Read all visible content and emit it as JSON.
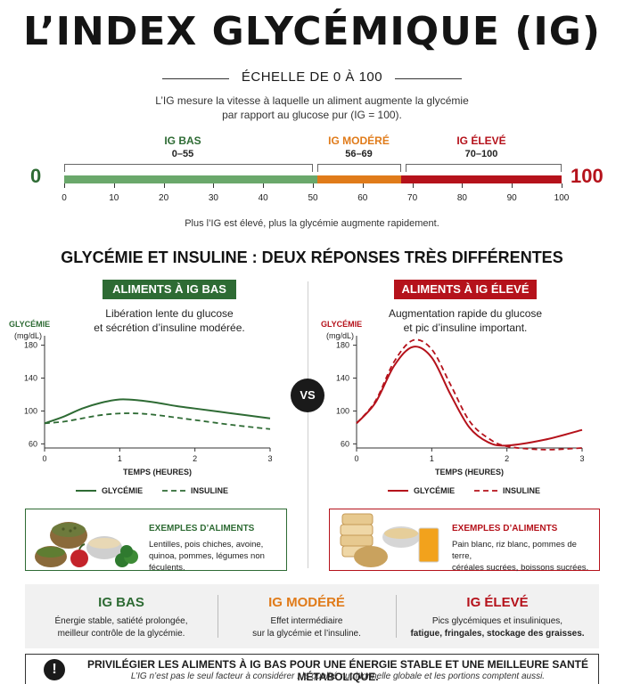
{
  "header": {
    "title": "L’INDEX GLYCÉMIQUE (IG)",
    "subtitle": "ÉCHELLE DE 0 À 100",
    "intro_line1": "L’IG mesure la vitesse à laquelle un aliment augmente la glycémie",
    "intro_line2": "par rapport au glucose pur (IG = 100)."
  },
  "scale": {
    "min_label": "0",
    "max_label": "100",
    "zones": [
      {
        "name": "IG BAS",
        "range": "0–55",
        "color": "#6aa86b",
        "from": 0,
        "to": 55
      },
      {
        "name": "IG MODÉRÉ",
        "range": "56–69",
        "color": "#e07b1a",
        "from": 55,
        "to": 70
      },
      {
        "name": "IG ÉLEVÉ",
        "range": "70–100",
        "color": "#b5121b",
        "from": 70,
        "to": 100
      }
    ],
    "ticks": [
      "0",
      "10",
      "20",
      "30",
      "40",
      "50",
      "60",
      "70",
      "80",
      "90",
      "100"
    ],
    "note": "Plus l’IG est élevé, plus la glycémie augmente rapidement."
  },
  "comparison": {
    "title": "GLYCÉMIE ET INSULINE : DEUX RÉPONSES TRÈS DIFFÉRENTES",
    "vs": "VS",
    "low": {
      "tag": "ALIMENTS À IG BAS",
      "desc_line1": "Libération lente du glucose",
      "desc_line2": "et sécrétion d’insuline modérée.",
      "color": "#2e6b34",
      "examples_title": "EXEMPLES D’ALIMENTS",
      "examples_line1": "Lentilles, pois chiches, avoine,",
      "examples_line2": "quinoa, pommes, légumes non féculents."
    },
    "high": {
      "tag": "ALIMENTS À IG ÉLEVÉ",
      "desc_line1": "Augmentation rapide du glucose",
      "desc_line2": "et pic d’insuline important.",
      "color": "#b5121b",
      "examples_title": "EXEMPLES D’ALIMENTS",
      "examples_line1": "Pain blanc, riz blanc, pommes de terre,",
      "examples_line2": "céréales sucrées, boissons sucrées."
    }
  },
  "chart_data": [
    {
      "type": "line",
      "ylabel": "GLYCÉMIE",
      "yunit": "(mg/dL)",
      "xlabel": "TEMPS (HEURES)",
      "xlim": [
        0,
        3
      ],
      "ylim": [
        55,
        185
      ],
      "xticks": [
        "0",
        "1",
        "2",
        "3"
      ],
      "yticks": [
        "180",
        "140",
        "100",
        "60"
      ],
      "series": [
        {
          "name": "GLYCÉMIE",
          "x": [
            0,
            0.25,
            0.5,
            0.75,
            1.0,
            1.25,
            1.5,
            1.75,
            2.0,
            2.5,
            3.0
          ],
          "values": [
            85,
            93,
            103,
            110,
            114,
            113,
            110,
            106,
            103,
            97,
            91
          ]
        },
        {
          "name": "INSULINE",
          "x": [
            0,
            0.25,
            0.5,
            0.75,
            1.0,
            1.25,
            1.5,
            1.75,
            2.0,
            2.5,
            3.0
          ],
          "values": [
            85,
            87,
            91,
            95,
            97,
            97,
            95,
            92,
            89,
            83,
            78
          ]
        }
      ]
    },
    {
      "type": "line",
      "ylabel": "GLYCÉMIE",
      "yunit": "(mg/dL)",
      "xlabel": "TEMPS (HEURES)",
      "xlim": [
        0,
        3
      ],
      "ylim": [
        55,
        185
      ],
      "xticks": [
        "0",
        "1",
        "2",
        "3"
      ],
      "yticks": [
        "180",
        "140",
        "100",
        "60"
      ],
      "series": [
        {
          "name": "GLYCÉMIE",
          "x": [
            0,
            0.25,
            0.5,
            0.75,
            1.0,
            1.25,
            1.5,
            1.75,
            2.0,
            2.5,
            3.0
          ],
          "values": [
            85,
            110,
            155,
            178,
            165,
            120,
            80,
            62,
            58,
            65,
            77
          ]
        },
        {
          "name": "INSULINE",
          "x": [
            0,
            0.25,
            0.5,
            0.75,
            1.0,
            1.25,
            1.5,
            1.75,
            2.0,
            2.5,
            3.0
          ],
          "values": [
            85,
            112,
            160,
            186,
            175,
            132,
            88,
            67,
            57,
            53,
            55
          ]
        }
      ]
    }
  ],
  "summary": {
    "low": {
      "title": "IG BAS",
      "line1": "Énergie stable, satiété prolongée,",
      "line2": "meilleur contrôle de la glycémie."
    },
    "mid": {
      "title": "IG MODÉRÉ",
      "line1": "Effet intermédiaire",
      "line2": "sur la glycémie et l’insuline."
    },
    "high": {
      "title": "IG ÉLEVÉ",
      "line1": "Pics glycémiques et insuliniques,",
      "line2": "fatigue, fringales, stockage des graisses."
    }
  },
  "footer": {
    "main": "PRIVILÉGIER LES ALIMENTS À IG BAS POUR UNE ÉNERGIE STABLE ET UNE MEILLEURE SANTÉ MÉTABOLIQUE.",
    "sub": "L’IG n’est pas le seul facteur à considérer : la qualité nutritionnelle globale et les portions comptent aussi."
  },
  "icons": [
    "legume-bowls-icon",
    "bread-potato-juice-icon",
    "exclamation-icon"
  ]
}
